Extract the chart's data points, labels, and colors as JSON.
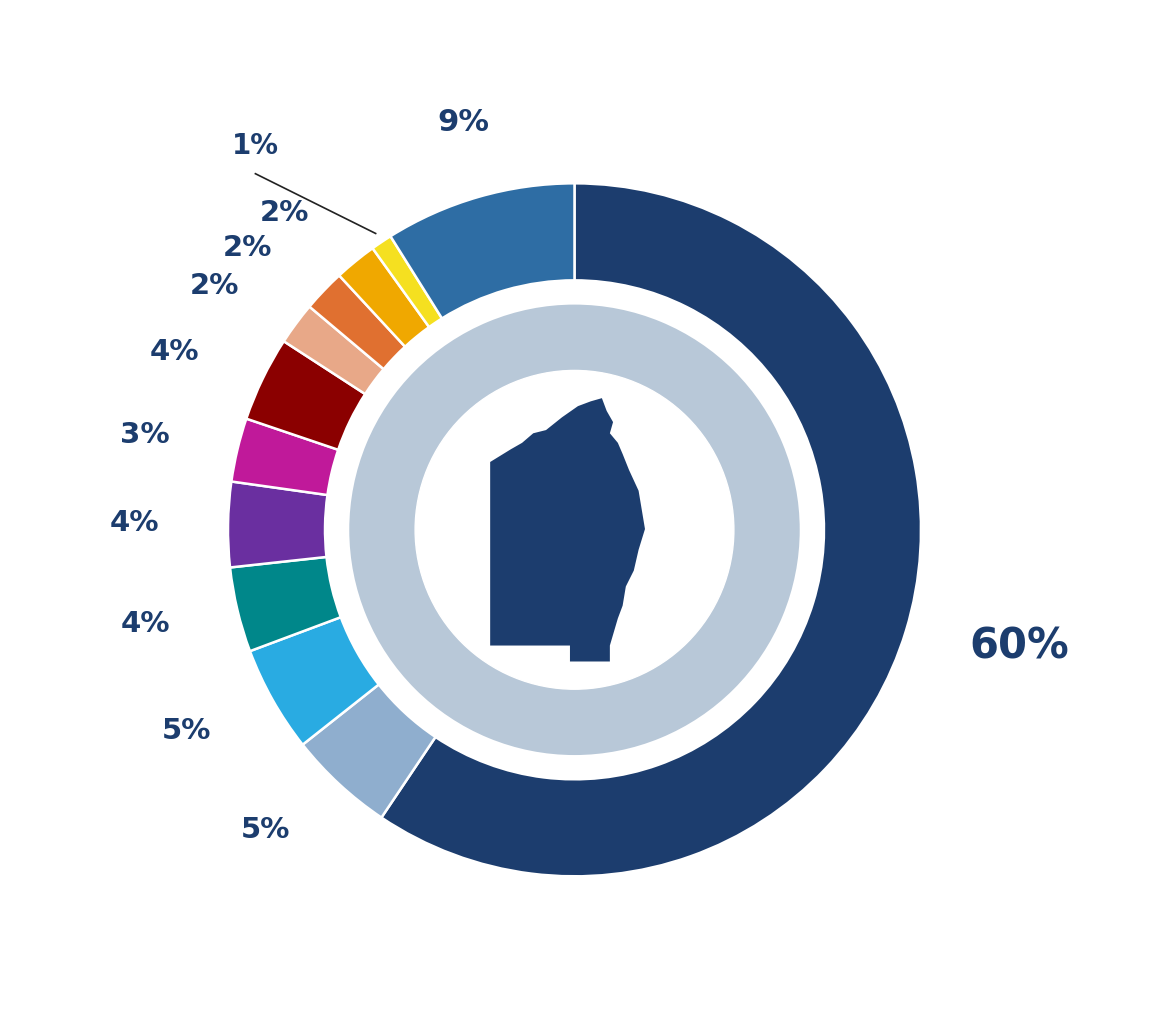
{
  "slices": [
    {
      "pct": 60,
      "label": "60%",
      "outer_color": "#1c3d6e",
      "inner_color": "#b8c8d8"
    },
    {
      "pct": 5,
      "label": "5%",
      "outer_color": "#8faece",
      "inner_color": "#b8c8d8"
    },
    {
      "pct": 5,
      "label": "5%",
      "outer_color": "#29abe2",
      "inner_color": "#b8c8d8"
    },
    {
      "pct": 4,
      "label": "4%",
      "outer_color": "#00878a",
      "inner_color": "#b8c8d8"
    },
    {
      "pct": 4,
      "label": "4%",
      "outer_color": "#6a2fa0",
      "inner_color": "#b8c8d8"
    },
    {
      "pct": 3,
      "label": "3%",
      "outer_color": "#c0199a",
      "inner_color": "#b8c8d8"
    },
    {
      "pct": 4,
      "label": "4%",
      "outer_color": "#8b0000",
      "inner_color": "#b8c8d8"
    },
    {
      "pct": 2,
      "label": "2%",
      "outer_color": "#e8a888",
      "inner_color": "#b8c8d8"
    },
    {
      "pct": 2,
      "label": "2%",
      "outer_color": "#e07030",
      "inner_color": "#b8c8d8"
    },
    {
      "pct": 2,
      "label": "2%",
      "outer_color": "#f0a800",
      "inner_color": "#b8c8d8"
    },
    {
      "pct": 1,
      "label": "1%",
      "outer_color": "#f5e020",
      "inner_color": "#b8c8d8"
    },
    {
      "pct": 9,
      "label": "9%",
      "outer_color": "#2e6da4",
      "inner_color": "#b8c8d8"
    }
  ],
  "background_color": "#ffffff",
  "text_color": "#1c3d6e",
  "outer_r": 1.0,
  "outer_ring_inner_r": 0.72,
  "inner_ring_outer_r": 0.65,
  "inner_ring_inner_r": 0.46,
  "white_r": 0.46,
  "start_angle": 90,
  "map_color": "#1c3d6e",
  "figsize": [
    11.49,
    10.25
  ],
  "dpi": 100
}
